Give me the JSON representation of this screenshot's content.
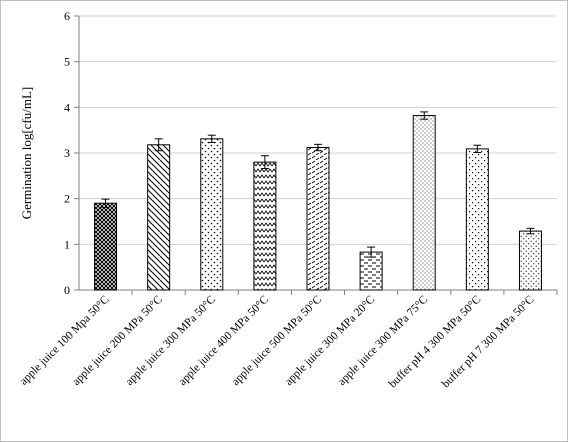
{
  "chart_data": {
    "type": "bar",
    "title": "",
    "xlabel": "",
    "ylabel": "Germination  log[cfu/mL]",
    "ylim": [
      0,
      6
    ],
    "yticks": [
      "0",
      "1",
      "2",
      "3",
      "4",
      "5",
      "6"
    ],
    "grid": true,
    "legend": "none",
    "categories": [
      "apple juice  100 Mpa  50°C",
      "apple juice 200 MPa 50°C",
      "apple juice 300 MPa 50°C",
      "apple juice 400 MPa 50°C",
      "apple juice 500 MPa 50°C",
      "apple juice 300 MPa 20°C",
      "apple juice 300 MPa 75°C",
      "buffer pH 4 300 MPa 50°C",
      "buffer pH 7 300 MPa 50°C"
    ],
    "values": [
      1.9,
      3.18,
      3.31,
      2.8,
      3.12,
      0.83,
      3.82,
      3.09,
      1.29
    ],
    "errors": [
      0.09,
      0.13,
      0.08,
      0.14,
      0.07,
      0.11,
      0.08,
      0.08,
      0.06
    ],
    "patterns": [
      "crosshatch-dense",
      "diagonal-down",
      "dots-coarse",
      "zigzag",
      "dashes-diagonal",
      "horizontal-dashes",
      "dots-fine",
      "dots-diamond",
      "dots-small"
    ],
    "colors": {
      "bar_fill_base": "#ffffff",
      "bar_stroke": "#000000",
      "grid": "#d0d0d0",
      "axis": "#808080"
    }
  }
}
